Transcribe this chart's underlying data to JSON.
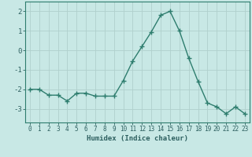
{
  "x": [
    0,
    1,
    2,
    3,
    4,
    5,
    6,
    7,
    8,
    9,
    10,
    11,
    12,
    13,
    14,
    15,
    16,
    17,
    18,
    19,
    20,
    21,
    22,
    23
  ],
  "y": [
    -2.0,
    -2.0,
    -2.3,
    -2.3,
    -2.6,
    -2.2,
    -2.2,
    -2.35,
    -2.35,
    -2.35,
    -1.55,
    -0.55,
    0.2,
    0.95,
    1.8,
    2.0,
    1.0,
    -0.4,
    -1.6,
    -2.7,
    -2.9,
    -3.25,
    -2.9,
    -3.25
  ],
  "line_color": "#2e7d6e",
  "marker": "+",
  "background_color": "#c8e8e5",
  "grid_color": "#b0d0cc",
  "axis_color": "#2e7d6e",
  "xlabel": "Humidex (Indice chaleur)",
  "xlim": [
    -0.5,
    23.5
  ],
  "ylim": [
    -3.7,
    2.5
  ],
  "yticks": [
    -3,
    -2,
    -1,
    0,
    1,
    2
  ],
  "font_color": "#2e6060",
  "linewidth": 1.0,
  "markersize": 4,
  "markeredgewidth": 1.0
}
